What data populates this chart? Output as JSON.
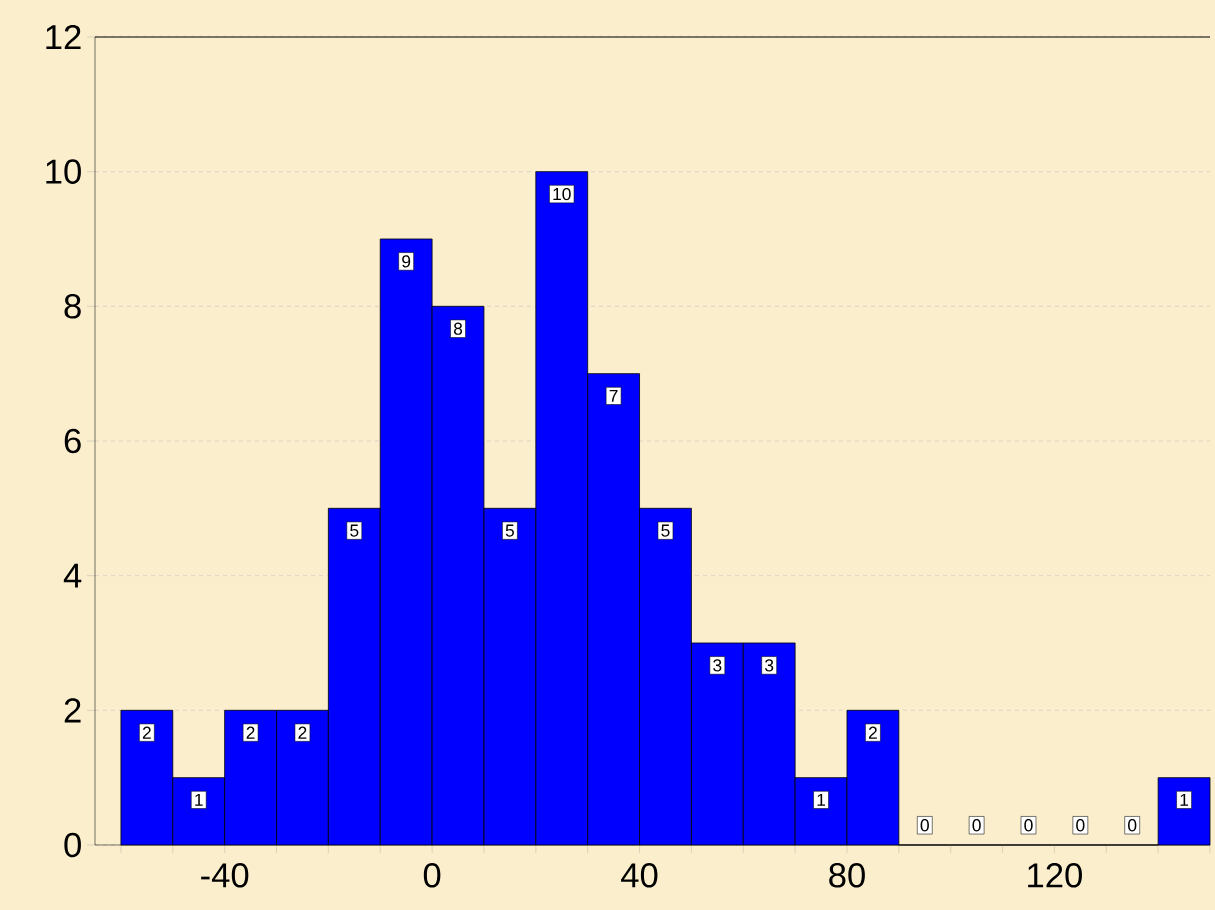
{
  "chart_data": {
    "type": "histogram",
    "bins": [
      -60,
      -50,
      -40,
      -30,
      -20,
      -10,
      0,
      10,
      20,
      30,
      40,
      50,
      60,
      70,
      80,
      90,
      100,
      110,
      120,
      130,
      140,
      150
    ],
    "values": [
      2,
      1,
      2,
      2,
      5,
      9,
      8,
      5,
      10,
      7,
      5,
      3,
      3,
      1,
      2,
      0,
      0,
      0,
      0,
      0,
      1
    ],
    "color": "#0000ff",
    "xlim": [
      -65,
      150
    ],
    "ylim": [
      0,
      12
    ],
    "xticks": [
      {
        "value": -60,
        "label": null
      },
      {
        "value": -50,
        "label": null
      },
      -40,
      {
        "value": -30,
        "label": null
      },
      {
        "value": -20,
        "label": null
      },
      {
        "value": -10,
        "label": null
      },
      0,
      {
        "value": 10,
        "label": null
      },
      {
        "value": 20,
        "label": null
      },
      {
        "value": 30,
        "label": null
      },
      40,
      {
        "value": 50,
        "label": null
      },
      {
        "value": 60,
        "label": null
      },
      {
        "value": 70,
        "label": null
      },
      80,
      {
        "value": 90,
        "label": null
      },
      {
        "value": 100,
        "label": null
      },
      {
        "value": 110,
        "label": null
      },
      120,
      {
        "value": 130,
        "label": null
      },
      {
        "value": 140,
        "label": null
      },
      {
        "value": 150,
        "label": null
      }
    ],
    "yticks": [
      0,
      2,
      4,
      6,
      8,
      10,
      12
    ],
    "grid": "y",
    "data_labels": true
  }
}
